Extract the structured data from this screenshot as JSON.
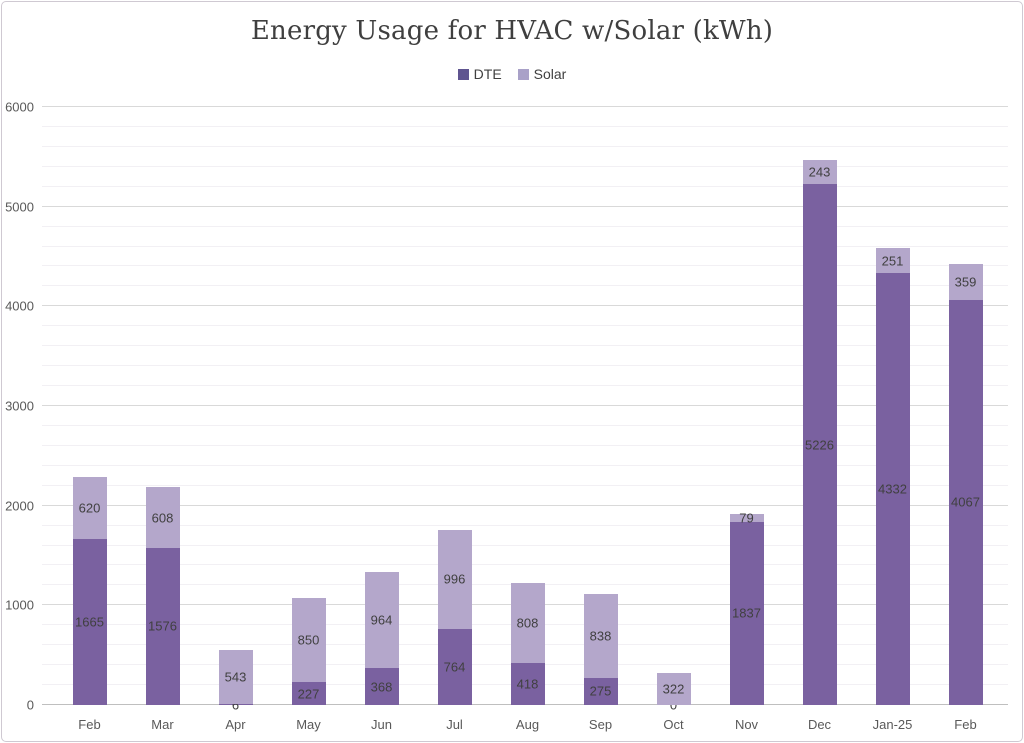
{
  "title": "Energy Usage for HVAC w/Solar (kWh)",
  "legend": {
    "items": [
      {
        "label": "DTE",
        "swatch_color": "#5f5490"
      },
      {
        "label": "Solar",
        "swatch_color": "#a9a1c8"
      }
    ],
    "position": "top"
  },
  "chart_data": {
    "type": "bar",
    "stacked": true,
    "title": "Energy Usage for HVAC w/Solar (kWh)",
    "categories": [
      "Feb",
      "Mar",
      "Apr",
      "May",
      "Jun",
      "Jul",
      "Aug",
      "Sep",
      "Oct",
      "Nov",
      "Dec",
      "Jan-25",
      "Feb"
    ],
    "series": [
      {
        "name": "DTE",
        "color": "#7a61a0",
        "values": [
          1665,
          1576,
          6,
          227,
          368,
          764,
          418,
          275,
          0,
          1837,
          5226,
          4332,
          4067
        ]
      },
      {
        "name": "Solar",
        "color": "#b4a7cb",
        "values": [
          620,
          608,
          543,
          850,
          964,
          996,
          808,
          838,
          322,
          79,
          243,
          251,
          359
        ]
      }
    ],
    "xlabel": "",
    "ylabel": "",
    "ylim": [
      0,
      6000
    ],
    "y_major_ticks": [
      0,
      1000,
      2000,
      3000,
      4000,
      5000,
      6000
    ],
    "y_minor_step": 200,
    "grid": "horizontal",
    "data_labels": true,
    "data_label_color": "#404040",
    "axis_text_color": "#595959"
  }
}
